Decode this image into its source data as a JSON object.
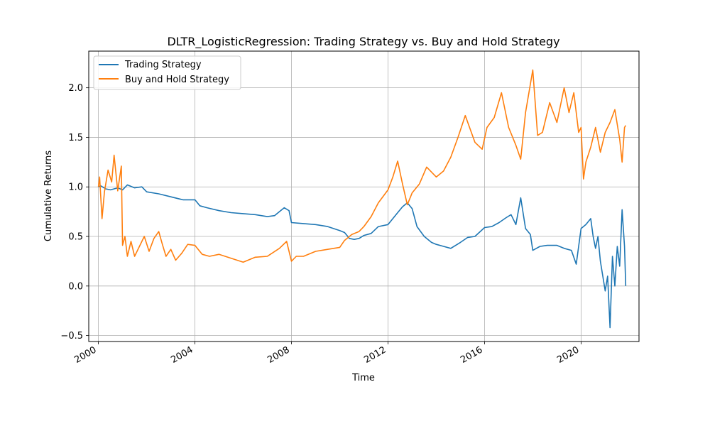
{
  "chart_data": {
    "type": "line",
    "title": "DLTR_LogisticRegression: Trading Strategy vs. Buy and Hold Strategy",
    "xlabel": "Time",
    "ylabel": "Cumulative Returns",
    "xlim": [
      1999.6,
      2022.4
    ],
    "ylim": [
      -0.56,
      2.37
    ],
    "x_ticks": [
      2000,
      2004,
      2008,
      2012,
      2016,
      2020
    ],
    "x_tick_labels": [
      "2000",
      "2004",
      "2008",
      "2012",
      "2016",
      "2020"
    ],
    "y_ticks": [
      -0.5,
      0.0,
      0.5,
      1.0,
      1.5,
      2.0
    ],
    "y_tick_labels": [
      "−0.5",
      "0.0",
      "0.5",
      "1.0",
      "1.5",
      "2.0"
    ],
    "grid": true,
    "legend_position": "top-left",
    "series": [
      {
        "name": "Trading Strategy",
        "color": "#1f77b4",
        "x": [
          2000.0,
          2000.1,
          2000.3,
          2000.5,
          2000.8,
          2001.0,
          2001.2,
          2001.5,
          2001.8,
          2002.0,
          2002.5,
          2003.0,
          2003.5,
          2004.0,
          2004.2,
          2004.5,
          2005.0,
          2005.5,
          2006.0,
          2006.5,
          2007.0,
          2007.3,
          2007.5,
          2007.7,
          2007.9,
          2008.0,
          2008.5,
          2009.0,
          2009.5,
          2010.0,
          2010.2,
          2010.4,
          2010.6,
          2010.8,
          2011.0,
          2011.3,
          2011.6,
          2012.0,
          2012.2,
          2012.4,
          2012.6,
          2012.8,
          2013.0,
          2013.2,
          2013.5,
          2013.8,
          2014.0,
          2014.3,
          2014.6,
          2015.0,
          2015.3,
          2015.6,
          2016.0,
          2016.3,
          2016.6,
          2016.9,
          2017.1,
          2017.3,
          2017.5,
          2017.7,
          2017.9,
          2018.0,
          2018.3,
          2018.6,
          2019.0,
          2019.3,
          2019.6,
          2019.8,
          2020.0,
          2020.2,
          2020.4,
          2020.5,
          2020.6,
          2020.7,
          2020.8,
          2020.9,
          2021.0,
          2021.1,
          2021.2,
          2021.3,
          2021.4,
          2021.5,
          2021.6,
          2021.7,
          2021.8,
          2021.85
        ],
        "y": [
          1.0,
          1.01,
          0.98,
          0.97,
          0.99,
          0.97,
          1.02,
          0.99,
          1.0,
          0.95,
          0.93,
          0.9,
          0.87,
          0.87,
          0.81,
          0.79,
          0.76,
          0.74,
          0.73,
          0.72,
          0.7,
          0.71,
          0.75,
          0.79,
          0.76,
          0.64,
          0.63,
          0.62,
          0.6,
          0.56,
          0.54,
          0.48,
          0.47,
          0.48,
          0.51,
          0.53,
          0.6,
          0.62,
          0.68,
          0.74,
          0.8,
          0.84,
          0.78,
          0.6,
          0.5,
          0.44,
          0.42,
          0.4,
          0.38,
          0.44,
          0.49,
          0.5,
          0.59,
          0.6,
          0.64,
          0.69,
          0.72,
          0.62,
          0.89,
          0.58,
          0.52,
          0.36,
          0.4,
          0.41,
          0.41,
          0.38,
          0.36,
          0.22,
          0.58,
          0.62,
          0.68,
          0.5,
          0.38,
          0.5,
          0.25,
          0.1,
          -0.05,
          0.1,
          -0.42,
          0.3,
          0.0,
          0.4,
          0.2,
          0.77,
          0.4,
          0.0
        ]
      },
      {
        "name": "Buy and Hold Strategy",
        "color": "#ff7f0e",
        "x": [
          2000.0,
          2000.05,
          2000.15,
          2000.25,
          2000.4,
          2000.55,
          2000.65,
          2000.8,
          2000.95,
          2001.0,
          2001.1,
          2001.2,
          2001.35,
          2001.5,
          2001.7,
          2001.9,
          2002.1,
          2002.3,
          2002.5,
          2002.65,
          2002.8,
          2003.0,
          2003.2,
          2003.45,
          2003.7,
          2004.0,
          2004.3,
          2004.6,
          2005.0,
          2005.5,
          2006.0,
          2006.5,
          2007.0,
          2007.5,
          2007.8,
          2008.0,
          2008.2,
          2008.5,
          2009.0,
          2009.5,
          2010.0,
          2010.2,
          2010.5,
          2010.8,
          2011.0,
          2011.3,
          2011.6,
          2012.0,
          2012.2,
          2012.4,
          2012.6,
          2012.8,
          2013.0,
          2013.3,
          2013.6,
          2014.0,
          2014.3,
          2014.6,
          2014.9,
          2015.2,
          2015.6,
          2015.9,
          2016.1,
          2016.4,
          2016.7,
          2017.0,
          2017.3,
          2017.5,
          2017.7,
          2018.0,
          2018.2,
          2018.4,
          2018.7,
          2019.0,
          2019.3,
          2019.5,
          2019.7,
          2019.9,
          2020.0,
          2020.1,
          2020.2,
          2020.4,
          2020.6,
          2020.8,
          2021.0,
          2021.2,
          2021.4,
          2021.6,
          2021.7,
          2021.8,
          2021.85
        ],
        "y": [
          1.0,
          1.1,
          0.68,
          0.95,
          1.17,
          1.05,
          1.32,
          0.96,
          1.21,
          0.41,
          0.5,
          0.3,
          0.45,
          0.3,
          0.4,
          0.5,
          0.35,
          0.48,
          0.55,
          0.42,
          0.3,
          0.37,
          0.26,
          0.33,
          0.42,
          0.41,
          0.32,
          0.3,
          0.32,
          0.28,
          0.24,
          0.29,
          0.3,
          0.38,
          0.45,
          0.25,
          0.3,
          0.3,
          0.35,
          0.37,
          0.39,
          0.46,
          0.52,
          0.55,
          0.6,
          0.7,
          0.84,
          0.97,
          1.1,
          1.26,
          1.03,
          0.82,
          0.94,
          1.03,
          1.2,
          1.1,
          1.16,
          1.3,
          1.5,
          1.72,
          1.45,
          1.38,
          1.6,
          1.7,
          1.95,
          1.6,
          1.42,
          1.28,
          1.75,
          2.18,
          1.52,
          1.55,
          1.85,
          1.65,
          2.0,
          1.75,
          1.95,
          1.55,
          1.6,
          1.08,
          1.25,
          1.4,
          1.6,
          1.35,
          1.55,
          1.65,
          1.78,
          1.48,
          1.25,
          1.6,
          1.62
        ]
      }
    ]
  }
}
